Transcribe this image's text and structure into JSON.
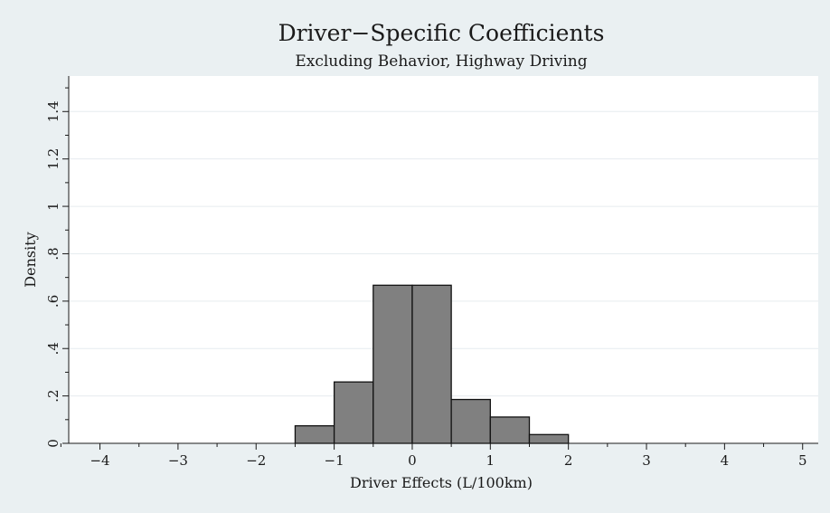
{
  "chart_data": {
    "type": "bar",
    "title": "Driver−Specific Coefficients",
    "subtitle": "Excluding Behavior, Highway Driving",
    "xlabel": "Driver Effects (L/100km)",
    "ylabel": "Density",
    "xlim": [
      -4.4,
      5.2
    ],
    "ylim": [
      0,
      1.55
    ],
    "x_ticks": [
      -4,
      -3,
      -2,
      -1,
      0,
      1,
      2,
      3,
      4,
      5
    ],
    "x_tick_labels": [
      "−4",
      "−3",
      "−2",
      "−1",
      "0",
      "1",
      "2",
      "3",
      "4",
      "5"
    ],
    "x_minor_ticks": [
      -4.5,
      -3.5,
      -2.5,
      -1.5,
      -0.5,
      0.5,
      1.5,
      2.5,
      3.5,
      4.5
    ],
    "y_ticks": [
      0,
      0.2,
      0.4,
      0.6,
      0.8,
      1.0,
      1.2,
      1.4
    ],
    "y_tick_labels": [
      "0",
      ".2",
      ".4",
      ".6",
      ".8",
      "1",
      "1.2",
      "1.4"
    ],
    "y_minor_ticks": [
      0.1,
      0.3,
      0.5,
      0.7,
      0.9,
      1.1,
      1.3,
      1.5
    ],
    "grid": true,
    "bin_edges": [
      -1.5,
      -1.0,
      -0.5,
      0.0,
      0.5,
      1.0,
      1.5,
      2.0
    ],
    "values": [
      0.074,
      0.259,
      0.667,
      0.667,
      0.185,
      0.111,
      0.037
    ],
    "bar_color": "#808080",
    "edge_color": "#111111",
    "plot_background": "#ffffff",
    "page_background": "#eaf0f2",
    "grid_color": "#e6ecef"
  }
}
